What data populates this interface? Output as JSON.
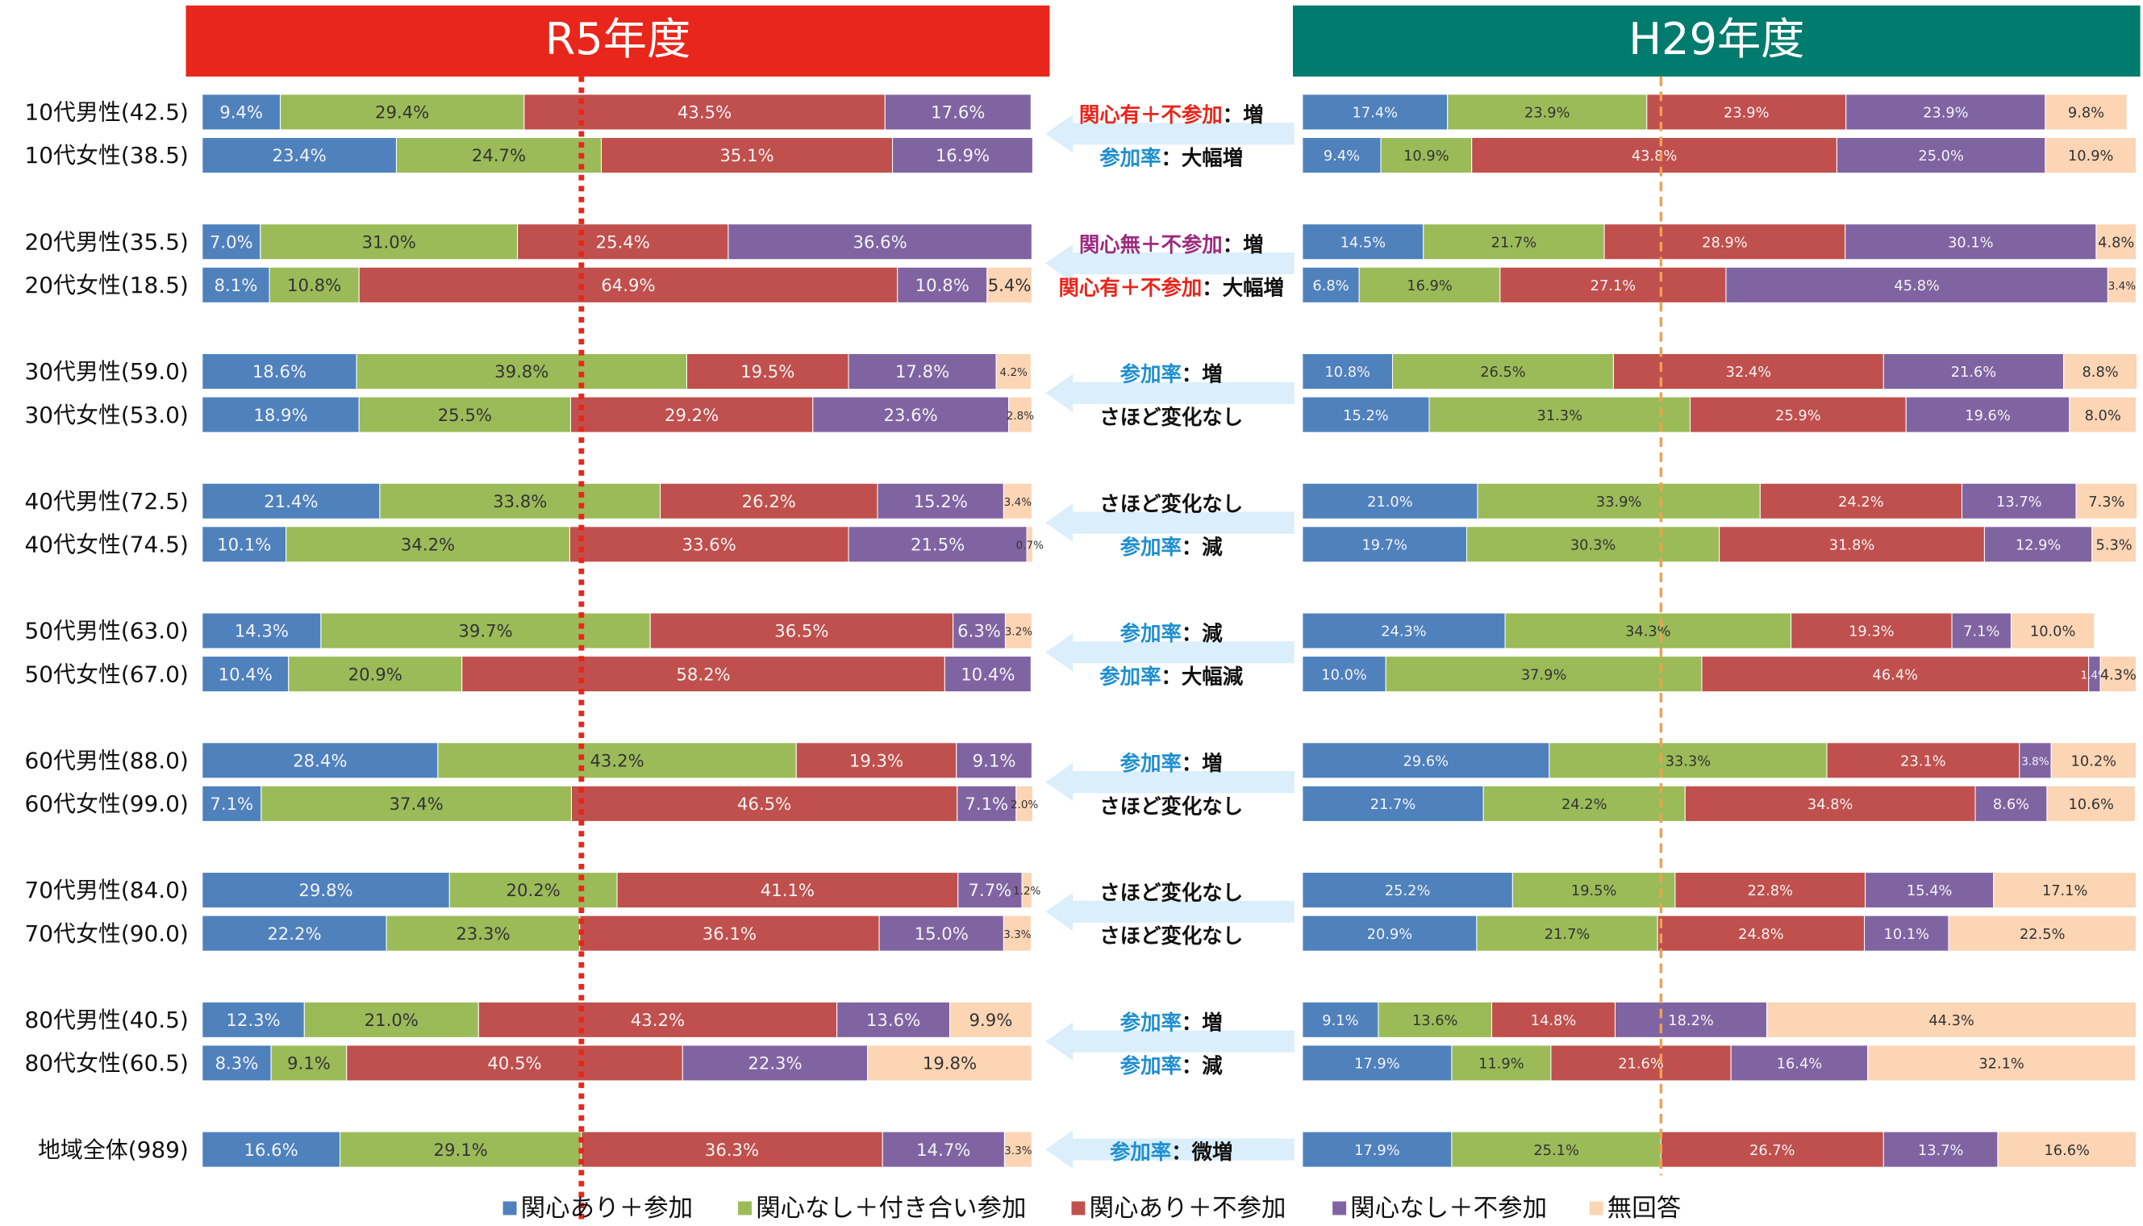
{
  "chart_data": [
    {
      "type": "bar",
      "orientation": "horizontal",
      "stacked": true,
      "title": "R5年度",
      "title_color": "#e8261b",
      "categories": [
        "10代男性(42.5)",
        "10代女性(38.5)",
        null,
        "20代男性(35.5)",
        "20代女性(18.5)",
        null,
        "30代男性(59.0)",
        "30代女性(53.0)",
        null,
        "40代男性(72.5)",
        "40代女性(74.5)",
        null,
        "50代男性(63.0)",
        "50代女性(67.0)",
        null,
        "60代男性(88.0)",
        "60代女性(99.0)",
        null,
        "70代男性(84.0)",
        "70代女性(90.0)",
        null,
        "80代男性(40.5)",
        "80代女性(60.5)",
        null,
        "地域全体(989)"
      ],
      "xlim": [
        0,
        100
      ],
      "reference_value": 45.7,
      "reference_color": "#e8261b",
      "series": [
        {
          "name": "関心あり＋参加",
          "color": "#4f81bd",
          "values": [
            9.4,
            23.4,
            null,
            7.0,
            8.1,
            null,
            18.6,
            18.9,
            null,
            21.4,
            10.1,
            null,
            14.3,
            10.4,
            null,
            28.4,
            7.1,
            null,
            29.8,
            22.2,
            null,
            12.3,
            8.3,
            null,
            16.6
          ],
          "value_labels": [
            "9.4%",
            "23.4%",
            null,
            "7.0%",
            "8.1%",
            null,
            "18.6%",
            "18.9%",
            null,
            "21.4%",
            "10.1%",
            null,
            "14.3%",
            "10.4%",
            null,
            "28.4%",
            "7.1%",
            null,
            "29.8%",
            "22.2%",
            null,
            "12.3%",
            "8.3%",
            null,
            "16.6%"
          ]
        },
        {
          "name": "関心なし＋付き合い参加",
          "color": "#9bbb59",
          "values": [
            29.4,
            24.7,
            null,
            31.0,
            10.8,
            null,
            39.8,
            25.5,
            null,
            33.8,
            34.2,
            null,
            39.7,
            20.9,
            null,
            43.2,
            37.4,
            null,
            20.2,
            23.3,
            null,
            21.0,
            9.1,
            null,
            29.1
          ],
          "value_labels": [
            "29.4%",
            "24.7%",
            null,
            "31.0%",
            "10.8%",
            null,
            "39.8%",
            "25.5%",
            null,
            "33.8%",
            "34.2%",
            null,
            "39.7%",
            "20.9%",
            null,
            "43.2%",
            "37.4%",
            null,
            "20.2%",
            "23.3%",
            null,
            "21.0%",
            "9.1%",
            null,
            "29.1%"
          ]
        },
        {
          "name": "関心あり＋不参加",
          "color": "#c0504d",
          "values": [
            43.5,
            35.1,
            null,
            25.4,
            64.9,
            null,
            19.5,
            29.2,
            null,
            26.2,
            33.6,
            null,
            36.5,
            58.2,
            null,
            19.3,
            46.5,
            null,
            41.1,
            36.1,
            null,
            43.2,
            40.5,
            null,
            36.3
          ],
          "value_labels": [
            "43.5%",
            "35.1%",
            null,
            "25.4%",
            "64.9%",
            null,
            "19.5%",
            "29.2%",
            null,
            "26.2%",
            "33.6%",
            null,
            "36.5%",
            "58.2%",
            null,
            "19.3%",
            "46.5%",
            null,
            "41.1%",
            "36.1%",
            null,
            "43.2%",
            "40.5%",
            null,
            "36.3%"
          ]
        },
        {
          "name": "関心なし＋不参加",
          "color": "#8064a2",
          "values": [
            17.6,
            16.9,
            null,
            36.6,
            10.8,
            null,
            17.8,
            23.6,
            null,
            15.2,
            21.5,
            null,
            6.3,
            10.4,
            null,
            9.1,
            7.1,
            null,
            7.7,
            15.0,
            null,
            13.6,
            22.3,
            null,
            14.7
          ],
          "value_labels": [
            "17.6%",
            "16.9%",
            null,
            "36.6%",
            "10.8%",
            null,
            "17.8%",
            "23.6%",
            null,
            "15.2%",
            "21.5%",
            null,
            "6.3%",
            "10.4%",
            null,
            "9.1%",
            "7.1%",
            null,
            "7.7%",
            "15.0%",
            null,
            "13.6%",
            "22.3%",
            null,
            "14.7%"
          ]
        },
        {
          "name": "無回答",
          "color": "#fcd5b4",
          "values": [
            null,
            null,
            null,
            null,
            5.4,
            null,
            4.2,
            2.8,
            null,
            3.4,
            0.7,
            null,
            3.2,
            null,
            null,
            null,
            2.0,
            null,
            1.2,
            3.3,
            null,
            9.9,
            19.8,
            null,
            3.3
          ],
          "value_labels": [
            null,
            null,
            null,
            null,
            "5.4%",
            null,
            "4.2%",
            "2.8%",
            null,
            "3.4%",
            "0.7%",
            null,
            "3.2%",
            null,
            null,
            null,
            "2.0%",
            null,
            "1.2%",
            "3.3%",
            null,
            "9.9%",
            "19.8%",
            null,
            "3.3%"
          ]
        }
      ]
    },
    {
      "type": "bar",
      "orientation": "horizontal",
      "stacked": true,
      "title": "H29年度",
      "title_color": "#007b6e",
      "xlim": [
        0,
        100
      ],
      "reference_value": 43.0,
      "reference_color": "#f0a050",
      "series": [
        {
          "color": "#4f81bd",
          "values": [
            17.4,
            9.4,
            null,
            14.5,
            6.8,
            null,
            10.8,
            15.2,
            null,
            21.0,
            19.7,
            null,
            24.3,
            10.0,
            null,
            29.6,
            21.7,
            null,
            25.2,
            20.9,
            null,
            9.1,
            17.9,
            null,
            17.9
          ],
          "value_labels": [
            "17.4%",
            "9.4%",
            null,
            "14.5%",
            "6.8%",
            null,
            "10.8%",
            "15.2%",
            null,
            "21.0%",
            "19.7%",
            null,
            "24.3%",
            "10.0%",
            null,
            "29.6%",
            "21.7%",
            null,
            "25.2%",
            "20.9%",
            null,
            "9.1%",
            "17.9%",
            null,
            "17.9%"
          ]
        },
        {
          "color": "#9bbb59",
          "values": [
            23.9,
            10.9,
            null,
            21.7,
            16.9,
            null,
            26.5,
            31.3,
            null,
            33.9,
            30.3,
            null,
            34.3,
            37.9,
            null,
            33.3,
            24.2,
            null,
            19.5,
            21.7,
            null,
            13.6,
            11.9,
            null,
            25.1
          ],
          "value_labels": [
            "23.9%",
            "10.9%",
            null,
            "21.7%",
            "16.9%",
            null,
            "26.5%",
            "31.3%",
            null,
            "33.9%",
            "30.3%",
            null,
            "34.3%",
            "37.9%",
            null,
            "33.3%",
            "24.2%",
            null,
            "19.5%",
            "21.7%",
            null,
            "13.6%",
            "11.9%",
            null,
            "25.1%"
          ]
        },
        {
          "color": "#c0504d",
          "values": [
            23.9,
            43.8,
            null,
            28.9,
            27.1,
            null,
            32.4,
            25.9,
            null,
            24.2,
            31.8,
            null,
            19.3,
            46.4,
            null,
            23.1,
            34.8,
            null,
            22.8,
            24.8,
            null,
            14.8,
            21.6,
            null,
            26.7
          ],
          "value_labels": [
            "23.9%",
            "43.8%",
            null,
            "28.9%",
            "27.1%",
            null,
            "32.4%",
            "25.9%",
            null,
            "24.2%",
            "31.8%",
            null,
            "19.3%",
            "46.4%",
            null,
            "23.1%",
            "34.8%",
            null,
            "22.8%",
            "24.8%",
            null,
            "14.8%",
            "21.6%",
            null,
            "26.7%"
          ]
        },
        {
          "color": "#8064a2",
          "values": [
            23.9,
            25.0,
            null,
            30.1,
            45.8,
            null,
            21.6,
            19.6,
            null,
            13.7,
            12.9,
            null,
            7.1,
            1.4,
            null,
            3.8,
            8.6,
            null,
            15.4,
            10.1,
            null,
            18.2,
            16.4,
            null,
            13.7
          ],
          "value_labels": [
            "23.9%",
            "25.0%",
            null,
            "30.1%",
            "45.8%",
            null,
            "21.6%",
            "19.6%",
            null,
            "13.7%",
            "12.9%",
            null,
            "7.1%",
            "1.4%",
            null,
            "3.8%",
            "8.6%",
            null,
            "15.4%",
            "10.1%",
            null,
            "18.2%",
            "16.4%",
            null,
            "13.7%"
          ]
        },
        {
          "color": "#fcd5b4",
          "values": [
            9.8,
            10.9,
            null,
            4.8,
            3.4,
            null,
            8.8,
            8.0,
            null,
            7.3,
            5.3,
            null,
            10.0,
            4.3,
            null,
            10.2,
            10.6,
            null,
            17.1,
            22.5,
            null,
            44.3,
            32.1,
            null,
            16.6
          ],
          "value_labels": [
            "9.8%",
            "10.9%",
            null,
            "4.8%",
            "3.4%",
            null,
            "8.8%",
            "8.0%",
            null,
            "7.3%",
            "5.3%",
            null,
            "10.0%",
            "4.3%",
            null,
            "10.2%",
            "10.6%",
            null,
            "17.1%",
            "22.5%",
            null,
            "44.3%",
            "32.1%",
            null,
            "16.6%"
          ]
        }
      ]
    }
  ],
  "annotations": [
    {
      "key": "関心有＋不参加",
      "color": "#e8261b",
      "rest": "：増"
    },
    {
      "key": "参加率",
      "color": "#1f8fcf",
      "rest": "：大幅増"
    },
    null,
    {
      "key": "関心無＋不参加",
      "color": "#9c2a7e",
      "rest": "：増"
    },
    {
      "key": "関心有＋不参加",
      "color": "#e8261b",
      "rest": "：大幅増"
    },
    null,
    {
      "key": "参加率",
      "color": "#1f8fcf",
      "rest": "：増"
    },
    {
      "rest": "さほど変化なし"
    },
    null,
    {
      "rest": "さほど変化なし"
    },
    {
      "key": "参加率",
      "color": "#1f8fcf",
      "rest": "：減"
    },
    null,
    {
      "key": "参加率",
      "color": "#1f8fcf",
      "rest": "：減"
    },
    {
      "key": "参加率",
      "color": "#1f8fcf",
      "rest": "：大幅減"
    },
    null,
    {
      "key": "参加率",
      "color": "#1f8fcf",
      "rest": "：増"
    },
    {
      "rest": "さほど変化なし"
    },
    null,
    {
      "rest": "さほど変化なし"
    },
    {
      "rest": "さほど変化なし"
    },
    null,
    {
      "key": "参加率",
      "color": "#1f8fcf",
      "rest": "：増"
    },
    {
      "key": "参加率",
      "color": "#1f8fcf",
      "rest": "：減"
    },
    null,
    {
      "key": "参加率",
      "color": "#1f8fcf",
      "rest": "：微増"
    }
  ]
}
